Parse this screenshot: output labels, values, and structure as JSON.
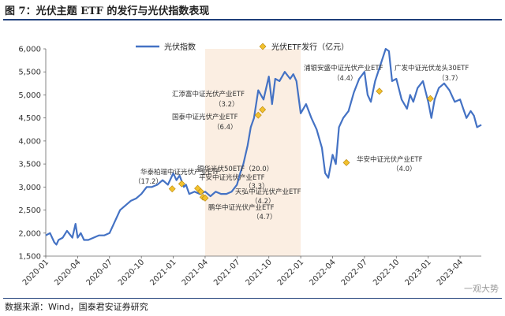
{
  "header": {
    "figure_title": "图 7：光伏主题 ETF 的发行与光伏指数表现"
  },
  "footer": {
    "source": "数据来源：Wind，国泰君安证券研究",
    "watermark": "一观大势"
  },
  "chart_data": {
    "type": "line",
    "title": "图 7：光伏主题 ETF 的发行与光伏指数表现",
    "xlabel": "",
    "ylabel": "",
    "ylim": [
      1500,
      6000
    ],
    "yticks": [
      1500,
      2000,
      2500,
      3000,
      3500,
      4000,
      4500,
      5000,
      5500,
      6000
    ],
    "ytick_labels": [
      "1,500",
      "2,000",
      "2,500",
      "3,000",
      "3,500",
      "4,000",
      "4,500",
      "5,000",
      "5,500",
      "6,000"
    ],
    "xlim": [
      0,
      41
    ],
    "xticks": [
      0,
      3,
      6,
      9,
      12,
      15,
      18,
      21,
      24,
      27,
      30,
      33,
      36,
      39
    ],
    "xtick_labels": [
      "2020-01",
      "2020-04",
      "2020-07",
      "2020-10",
      "2021-01",
      "2021-04",
      "2021-07",
      "2021-10",
      "2022-01",
      "2022-04",
      "2022-07",
      "2022-10",
      "2023-01",
      "2023-04"
    ],
    "highlight_range": [
      15,
      24
    ],
    "legend": {
      "placement": "top",
      "line_label": "光伏指数",
      "marker_label": "光伏ETF发行（亿元）"
    },
    "series": [
      {
        "name": "光伏指数",
        "x": [
          0,
          0.4,
          0.8,
          1.0,
          1.2,
          1.6,
          2.0,
          2.5,
          2.8,
          3.0,
          3.3,
          3.6,
          4.0,
          4.5,
          5.0,
          5.5,
          6.0,
          6.2,
          6.5,
          7.0,
          7.5,
          8.0,
          8.5,
          9.0,
          9.5,
          10.0,
          10.5,
          11.0,
          11.5,
          12.0,
          12.3,
          12.6,
          13.0,
          13.2,
          13.5,
          14.0,
          14.5,
          15.0,
          15.5,
          16.0,
          16.5,
          17.0,
          17.5,
          18.0,
          18.3,
          18.6,
          19.0,
          19.3,
          19.6,
          20.0,
          20.5,
          21.0,
          21.3,
          21.6,
          22.0,
          22.5,
          23.0,
          23.3,
          23.6,
          24.0,
          24.5,
          25.0,
          25.5,
          26.0,
          26.3,
          26.6,
          27.0,
          27.3,
          27.6,
          28.0,
          28.5,
          29.0,
          29.5,
          30.0,
          30.3,
          30.6,
          31.0,
          31.5,
          32.0,
          32.3,
          32.6,
          33.0,
          33.5,
          34.0,
          34.3,
          34.6,
          35.0,
          35.5,
          36.0,
          36.3,
          36.6,
          37.0,
          37.5,
          38.0,
          38.5,
          39.0,
          39.3,
          39.6,
          40.0,
          40.3,
          40.6,
          41.0
        ],
        "values": [
          1950,
          2000,
          1800,
          1750,
          1850,
          1900,
          2050,
          1900,
          2200,
          1900,
          2000,
          1850,
          1850,
          1900,
          1950,
          1950,
          2000,
          2100,
          2250,
          2500,
          2600,
          2700,
          2750,
          2850,
          3000,
          3000,
          3050,
          3150,
          3050,
          3300,
          3150,
          3250,
          3000,
          3050,
          2850,
          2900,
          2850,
          2900,
          2800,
          2900,
          2850,
          2850,
          2900,
          3050,
          3300,
          3500,
          3900,
          4300,
          4500,
          5100,
          4900,
          5400,
          4800,
          5350,
          5300,
          5500,
          5350,
          5450,
          5300,
          4600,
          4800,
          4500,
          4250,
          3850,
          3300,
          3200,
          3700,
          3500,
          4300,
          4500,
          4650,
          5050,
          5350,
          5500,
          5000,
          4850,
          5300,
          5650,
          6000,
          5950,
          5300,
          5350,
          4900,
          4700,
          5000,
          4850,
          5150,
          5300,
          4850,
          4500,
          4900,
          5150,
          5250,
          5100,
          4850,
          4900,
          4700,
          4500,
          4650,
          4550,
          4300,
          4350
        ]
      },
      {
        "name": "光伏ETF发行（亿元）",
        "points": [
          {
            "x": 11.9,
            "y": 2960,
            "label": "华泰柏瑞中证光伏产业ETF",
            "amount": "（17.2）"
          },
          {
            "x": 12.8,
            "y": 3070,
            "label": "",
            "amount": ""
          },
          {
            "x": 14.3,
            "y": 2970,
            "label": "银华光伏50ETF（20.0）",
            "amount": ""
          },
          {
            "x": 14.6,
            "y": 2900,
            "label": "平安中证光伏产业ETF",
            "amount": "（3.3）"
          },
          {
            "x": 14.8,
            "y": 2780,
            "label": "天弘中证光伏产业ETF",
            "amount": "（4.2）"
          },
          {
            "x": 15.0,
            "y": 2760,
            "label": "鹏华中证光伏产业ETF",
            "amount": "（4.7）"
          },
          {
            "x": 20.0,
            "y": 4560,
            "label": "国泰中证光伏产业ETF",
            "amount": "（6.4）"
          },
          {
            "x": 20.4,
            "y": 4680,
            "label": "汇添富中证光伏产业ETF",
            "amount": "（3.2）"
          },
          {
            "x": 28.3,
            "y": 3530,
            "label": "华安中证光伏产业ETF",
            "amount": "（4.0）"
          },
          {
            "x": 31.4,
            "y": 5080,
            "label": "浦银安盛中证光伏产业ETF",
            "amount": "（4.4）"
          },
          {
            "x": 36.2,
            "y": 4920,
            "label": "广发中证光伏龙头30ETF",
            "amount": "（3.7）"
          }
        ]
      }
    ]
  },
  "colors": {
    "line": "#4472c4",
    "marker": "#f2c12e",
    "marker_edge": "#b8860b",
    "highlight": "#fbeee2",
    "rule": "#1f3f7a"
  }
}
